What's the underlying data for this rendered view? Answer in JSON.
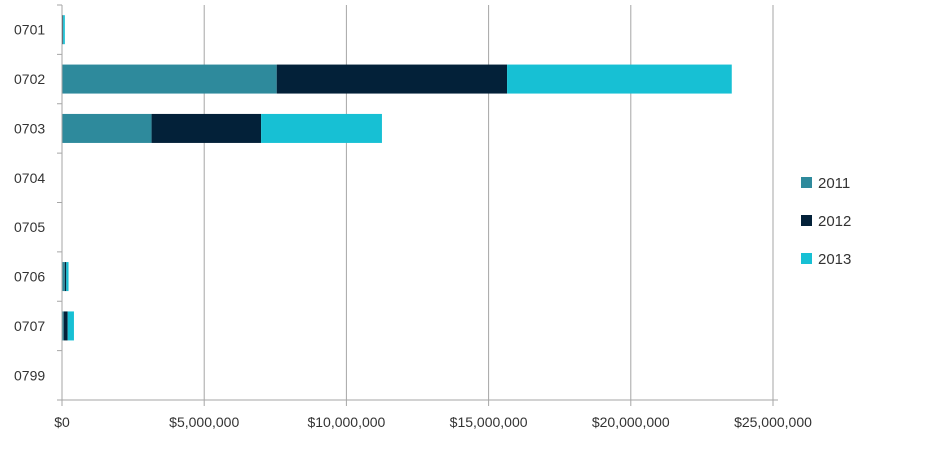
{
  "chart_data": {
    "type": "bar",
    "orientation": "horizontal",
    "stacked": true,
    "categories": [
      "0701",
      "0702",
      "0703",
      "0704",
      "0705",
      "0706",
      "0707",
      "0799"
    ],
    "series": [
      {
        "name": "2011",
        "color": "#2e8a9c",
        "values": [
          20000,
          7550000,
          3150000,
          0,
          0,
          100000,
          60000,
          0
        ]
      },
      {
        "name": "2012",
        "color": "#032139",
        "values": [
          20000,
          8100000,
          3850000,
          0,
          0,
          50000,
          140000,
          0
        ]
      },
      {
        "name": "2013",
        "color": "#17c0d4",
        "values": [
          60000,
          7900000,
          4250000,
          0,
          0,
          80000,
          220000,
          0
        ]
      }
    ],
    "x_ticks": [
      "$0",
      "$5,000,000",
      "$10,000,000",
      "$15,000,000",
      "$20,000,000",
      "$25,000,000"
    ],
    "xlim": [
      0,
      25000000
    ],
    "grid": "vertical",
    "legend_position": "right",
    "title": "",
    "xlabel": "",
    "ylabel": ""
  }
}
